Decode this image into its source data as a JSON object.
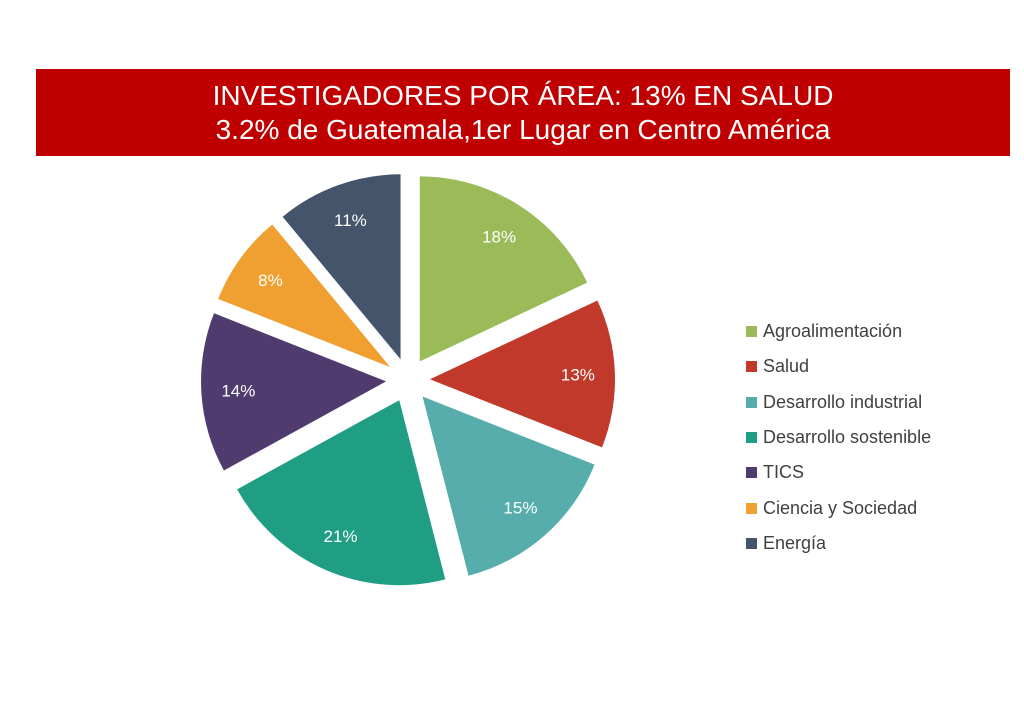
{
  "title": {
    "line1": "INVESTIGADORES POR ÁREA: 13% EN SALUD",
    "line2": "3.2% de Guatemala,1er Lugar en Centro América"
  },
  "chart_data": {
    "type": "pie",
    "title": "INVESTIGADORES POR ÁREA: 13% EN SALUD",
    "subtitle": "3.2% de Guatemala,1er Lugar en Centro América",
    "exploded": true,
    "legend_position": "right",
    "slices": [
      {
        "name": "Agroalimentación",
        "value": 18,
        "label": "18%",
        "color": "#9bbb59"
      },
      {
        "name": "Salud",
        "value": 13,
        "label": "13%",
        "color": "#c0392b"
      },
      {
        "name": "Desarrollo industrial",
        "value": 15,
        "label": "15%",
        "color": "#56adac"
      },
      {
        "name": "Desarrollo sostenible",
        "value": 21,
        "label": "21%",
        "color": "#1f9e83"
      },
      {
        "name": "TICS",
        "value": 14,
        "label": "14%",
        "color": "#4f3b6e"
      },
      {
        "name": "Ciencia y Sociedad",
        "value": 8,
        "label": "8%",
        "color": "#f0a030"
      },
      {
        "name": "Energía",
        "value": 11,
        "label": "11%",
        "color": "#44546a"
      }
    ]
  }
}
